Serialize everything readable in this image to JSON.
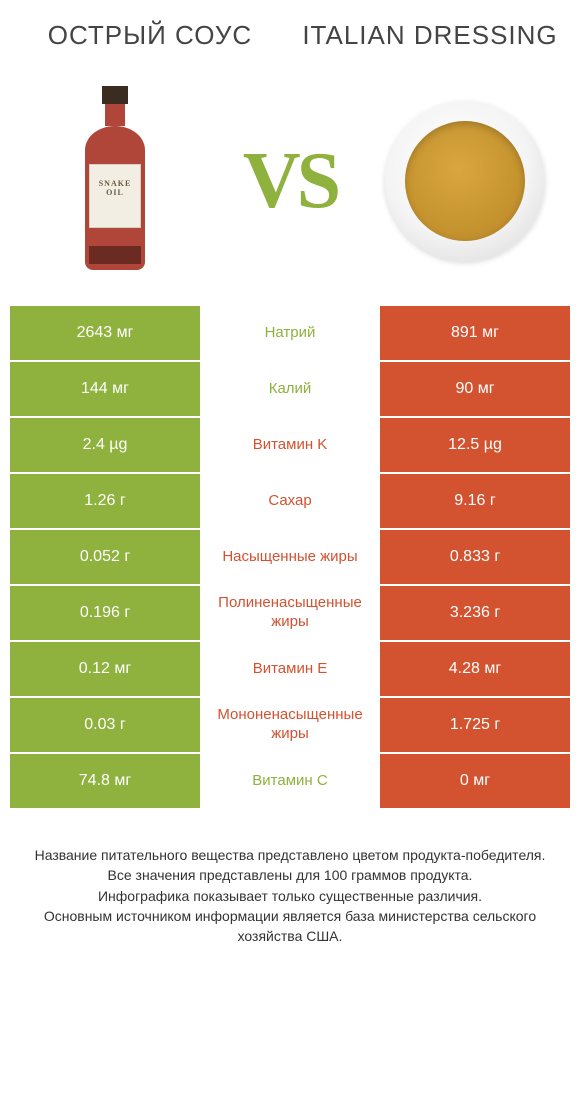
{
  "colors": {
    "left": "#8fb13e",
    "right": "#d35230",
    "vs": "#8fb13e",
    "text": "#333333",
    "cell_text": "#ffffff"
  },
  "header": {
    "left": "ОСТРЫЙ СОУС",
    "right": "ITALIAN DRESSING"
  },
  "vs": "VS",
  "rows": [
    {
      "left": "2643 мг",
      "label": "Натрий",
      "right": "891 мг",
      "winner": "left"
    },
    {
      "left": "144 мг",
      "label": "Калий",
      "right": "90 мг",
      "winner": "left"
    },
    {
      "left": "2.4 µg",
      "label": "Витамин K",
      "right": "12.5 µg",
      "winner": "right"
    },
    {
      "left": "1.26 г",
      "label": "Сахар",
      "right": "9.16 г",
      "winner": "right"
    },
    {
      "left": "0.052 г",
      "label": "Насыщенные жиры",
      "right": "0.833 г",
      "winner": "right"
    },
    {
      "left": "0.196 г",
      "label": "Полиненасыщенные жиры",
      "right": "3.236 г",
      "winner": "right"
    },
    {
      "left": "0.12 мг",
      "label": "Витамин E",
      "right": "4.28 мг",
      "winner": "right"
    },
    {
      "left": "0.03 г",
      "label": "Мононенасыщенные жиры",
      "right": "1.725 г",
      "winner": "right"
    },
    {
      "left": "74.8 мг",
      "label": "Витамин C",
      "right": "0 мг",
      "winner": "left"
    }
  ],
  "footer": [
    "Название питательного вещества представлено цветом продукта-победителя.",
    "Все значения представлены для 100 граммов продукта.",
    "Инфографика показывает только существенные различия.",
    "Основным источником информации является база министерства сельского хозяйства США."
  ]
}
